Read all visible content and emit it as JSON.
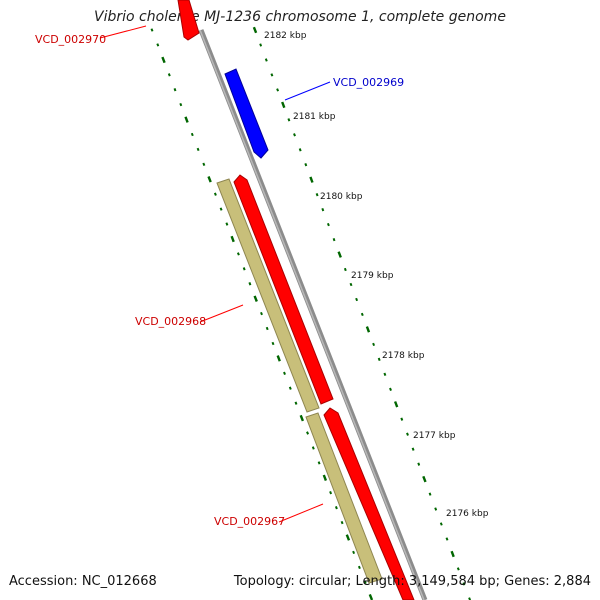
{
  "title": "Vibrio cholerae MJ-1236 chromosome 1, complete genome",
  "footer": {
    "accession": "Accession: NC_012668",
    "summary": "Topology: circular; Length: 3,149,584 bp; Genes: 2,884"
  },
  "colors": {
    "forward_strand": "#ff0000",
    "reverse_strand": "#0000ff",
    "orf_feature": "#c8bf7a",
    "backbone": "#808080",
    "ruler_ticks": "#006600",
    "forward_label": "#cc0000",
    "reverse_label": "#0000cc"
  },
  "ruler_labels": [
    "2182 kbp",
    "2181 kbp",
    "2180 kbp",
    "2179 kbp",
    "2178 kbp",
    "2177 kbp",
    "2176 kbp"
  ],
  "genes": [
    {
      "label": "VCD_002970",
      "strand": "forward"
    },
    {
      "label": "VCD_002969",
      "strand": "reverse"
    },
    {
      "label": "VCD_002968",
      "strand": "forward"
    },
    {
      "label": "VCD_002967",
      "strand": "forward"
    }
  ]
}
